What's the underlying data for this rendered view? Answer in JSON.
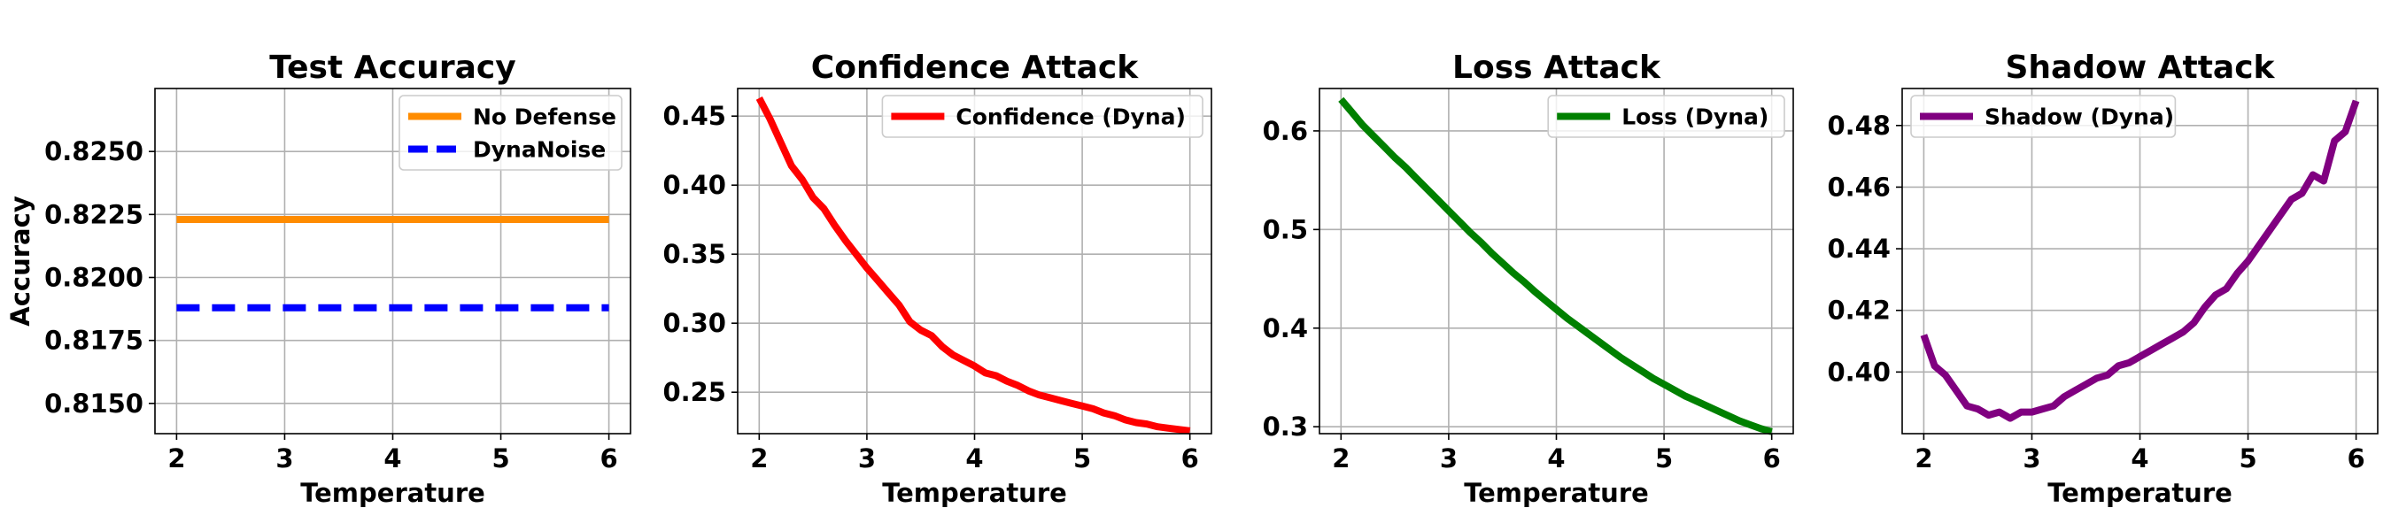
{
  "chart_data": [
    {
      "type": "line",
      "title": "Test Accuracy",
      "xlabel": "Temperature",
      "ylabel": "Accuracy",
      "xlim": [
        1.8,
        6.2
      ],
      "ylim": [
        0.8138,
        0.8275
      ],
      "xticks": [
        2,
        3,
        4,
        5,
        6
      ],
      "yticks": [
        0.815,
        0.8175,
        0.82,
        0.8225,
        0.825
      ],
      "ytick_labels": [
        "0.8150",
        "0.8175",
        "0.8200",
        "0.8225",
        "0.8250"
      ],
      "grid": true,
      "legend_position": "top-right",
      "series": [
        {
          "name": "No Defense",
          "color": "#ff8c00",
          "style": "solid",
          "x": [
            2,
            6
          ],
          "y": [
            0.8223,
            0.8223
          ]
        },
        {
          "name": "DynaNoise",
          "color": "#0000ff",
          "style": "dashed",
          "x": [
            2,
            6
          ],
          "y": [
            0.8188,
            0.8188
          ]
        }
      ]
    },
    {
      "type": "line",
      "title": "Confidence Attack",
      "xlabel": "Temperature",
      "ylabel": "",
      "xlim": [
        1.8,
        6.2
      ],
      "ylim": [
        0.22,
        0.47
      ],
      "xticks": [
        2,
        3,
        4,
        5,
        6
      ],
      "yticks": [
        0.25,
        0.3,
        0.35,
        0.4,
        0.45
      ],
      "ytick_labels": [
        "0.25",
        "0.30",
        "0.35",
        "0.40",
        "0.45"
      ],
      "grid": true,
      "legend_position": "top-right",
      "series": [
        {
          "name": "Confidence (Dyna)",
          "color": "#ff0000",
          "style": "solid",
          "x": [
            2.0,
            2.1,
            2.2,
            2.3,
            2.4,
            2.5,
            2.6,
            2.7,
            2.8,
            2.9,
            3.0,
            3.1,
            3.2,
            3.3,
            3.4,
            3.5,
            3.6,
            3.7,
            3.8,
            3.9,
            4.0,
            4.1,
            4.2,
            4.3,
            4.4,
            4.5,
            4.6,
            4.7,
            4.8,
            4.9,
            5.0,
            5.1,
            5.2,
            5.3,
            5.4,
            5.5,
            5.6,
            5.7,
            5.8,
            5.9,
            6.0
          ],
          "y": [
            0.463,
            0.448,
            0.431,
            0.414,
            0.404,
            0.391,
            0.383,
            0.371,
            0.36,
            0.35,
            0.34,
            0.331,
            0.322,
            0.313,
            0.301,
            0.295,
            0.291,
            0.283,
            0.277,
            0.273,
            0.269,
            0.264,
            0.262,
            0.258,
            0.255,
            0.251,
            0.248,
            0.246,
            0.244,
            0.242,
            0.24,
            0.238,
            0.235,
            0.233,
            0.23,
            0.228,
            0.227,
            0.225,
            0.224,
            0.223,
            0.222
          ]
        }
      ]
    },
    {
      "type": "line",
      "title": "Loss Attack",
      "xlabel": "Temperature",
      "ylabel": "",
      "xlim": [
        1.8,
        6.2
      ],
      "ylim": [
        0.293,
        0.643
      ],
      "xticks": [
        2,
        3,
        4,
        5,
        6
      ],
      "yticks": [
        0.3,
        0.4,
        0.5,
        0.6
      ],
      "ytick_labels": [
        "0.3",
        "0.4",
        "0.5",
        "0.6"
      ],
      "grid": true,
      "legend_position": "top-right",
      "series": [
        {
          "name": "Loss (Dyna)",
          "color": "#008000",
          "style": "solid",
          "x": [
            2.0,
            2.1,
            2.2,
            2.3,
            2.4,
            2.5,
            2.6,
            2.7,
            2.8,
            2.9,
            3.0,
            3.1,
            3.2,
            3.3,
            3.4,
            3.5,
            3.6,
            3.7,
            3.8,
            3.9,
            4.0,
            4.1,
            4.2,
            4.3,
            4.4,
            4.5,
            4.6,
            4.7,
            4.8,
            4.9,
            5.0,
            5.1,
            5.2,
            5.3,
            5.4,
            5.5,
            5.6,
            5.7,
            5.8,
            5.9,
            6.0
          ],
          "y": [
            0.632,
            0.619,
            0.606,
            0.595,
            0.584,
            0.573,
            0.563,
            0.552,
            0.541,
            0.53,
            0.519,
            0.508,
            0.497,
            0.487,
            0.476,
            0.466,
            0.456,
            0.447,
            0.437,
            0.428,
            0.419,
            0.41,
            0.402,
            0.394,
            0.386,
            0.378,
            0.37,
            0.363,
            0.356,
            0.349,
            0.343,
            0.337,
            0.331,
            0.326,
            0.321,
            0.316,
            0.311,
            0.306,
            0.302,
            0.298,
            0.295
          ]
        }
      ]
    },
    {
      "type": "line",
      "title": "Shadow Attack",
      "xlabel": "Temperature",
      "ylabel": "",
      "xlim": [
        1.8,
        6.2
      ],
      "ylim": [
        0.38,
        0.492
      ],
      "xticks": [
        2,
        3,
        4,
        5,
        6
      ],
      "yticks": [
        0.4,
        0.42,
        0.44,
        0.46,
        0.48
      ],
      "ytick_labels": [
        "0.40",
        "0.42",
        "0.44",
        "0.46",
        "0.48"
      ],
      "grid": true,
      "legend_position": "top-left",
      "series": [
        {
          "name": "Shadow (Dyna)",
          "color": "#800080",
          "style": "solid",
          "x": [
            2.0,
            2.1,
            2.2,
            2.3,
            2.4,
            2.5,
            2.6,
            2.7,
            2.8,
            2.9,
            3.0,
            3.1,
            3.2,
            3.3,
            3.4,
            3.5,
            3.6,
            3.7,
            3.8,
            3.9,
            4.0,
            4.1,
            4.2,
            4.3,
            4.4,
            4.5,
            4.6,
            4.7,
            4.8,
            4.9,
            5.0,
            5.1,
            5.2,
            5.3,
            5.4,
            5.5,
            5.6,
            5.7,
            5.8,
            5.9,
            6.0
          ],
          "y": [
            0.412,
            0.402,
            0.399,
            0.394,
            0.389,
            0.388,
            0.386,
            0.387,
            0.385,
            0.387,
            0.387,
            0.388,
            0.389,
            0.392,
            0.394,
            0.396,
            0.398,
            0.399,
            0.402,
            0.403,
            0.405,
            0.407,
            0.409,
            0.411,
            0.413,
            0.416,
            0.421,
            0.425,
            0.427,
            0.432,
            0.436,
            0.441,
            0.446,
            0.451,
            0.456,
            0.458,
            0.464,
            0.462,
            0.475,
            0.478,
            0.488
          ]
        }
      ]
    }
  ]
}
